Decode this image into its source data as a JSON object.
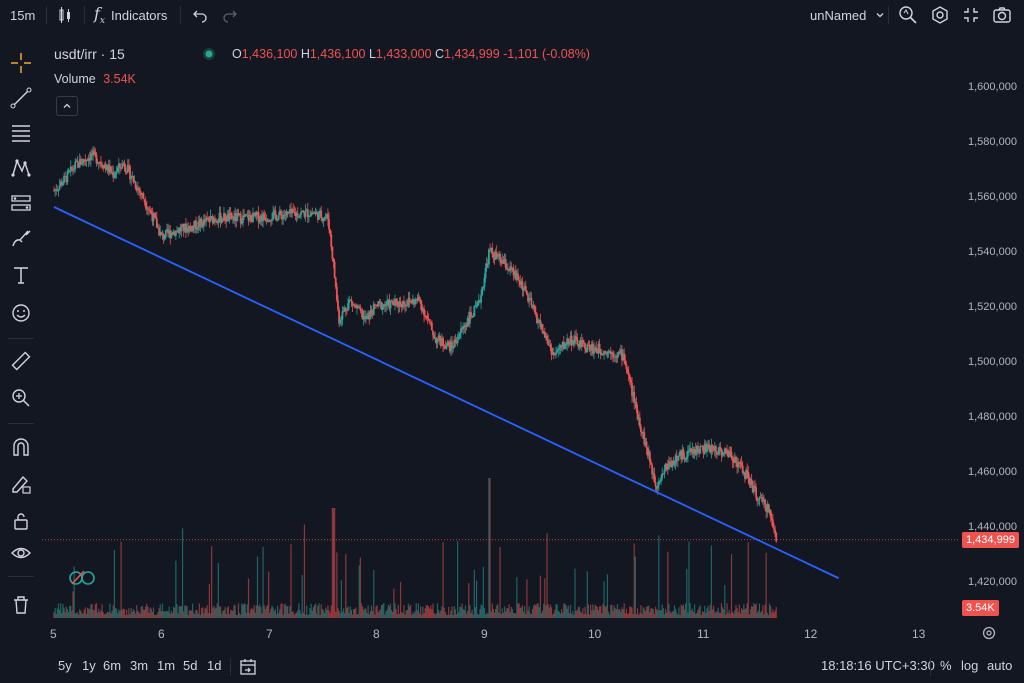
{
  "topbar": {
    "interval": "15m",
    "indicators_label": "Indicators",
    "layout_name": "unNamed"
  },
  "legend": {
    "symbol": "usdt/irr · 15",
    "open_label": "O",
    "open": "1,436,100",
    "high_label": "H",
    "high": "1,436,100",
    "low_label": "L",
    "low": "1,433,000",
    "close_label": "C",
    "close": "1,434,999",
    "change": "-1,101 (-0.08%)",
    "volume_label": "Volume",
    "volume_value": "3.54K"
  },
  "price_axis": {
    "ticks": [
      "1,600,000",
      "1,580,000",
      "1,560,000",
      "1,540,000",
      "1,520,000",
      "1,500,000",
      "1,480,000",
      "1,460,000",
      "1,440,000",
      "1,420,000"
    ],
    "current_price": "1,434,999",
    "current_volume": "3.54K"
  },
  "time_axis": {
    "ticks": [
      "5",
      "6",
      "7",
      "8",
      "9",
      "10",
      "11",
      "12",
      "13"
    ]
  },
  "bottombar": {
    "ranges": [
      "5y",
      "1y",
      "6m",
      "3m",
      "1m",
      "5d",
      "1d"
    ],
    "clock": "18:18:16 UTC+3:30",
    "percent": "%",
    "log": "log",
    "auto": "auto"
  },
  "colors": {
    "up": "#26a69a",
    "down": "#ef5350",
    "trendline": "#2962ff",
    "background": "#131722"
  },
  "chart_data": {
    "type": "candlestick",
    "series_name": "usdt/irr",
    "interval": "15",
    "x_ticks": [
      "5",
      "6",
      "7",
      "8",
      "9",
      "10",
      "11",
      "12",
      "13"
    ],
    "ylim": [
      1410000,
      1610000
    ],
    "close_path": [
      {
        "x": 5.0,
        "y": 1562000
      },
      {
        "x": 5.1,
        "y": 1566000
      },
      {
        "x": 5.2,
        "y": 1571000
      },
      {
        "x": 5.35,
        "y": 1575000
      },
      {
        "x": 5.45,
        "y": 1572000
      },
      {
        "x": 5.55,
        "y": 1568000
      },
      {
        "x": 5.65,
        "y": 1572000
      },
      {
        "x": 5.75,
        "y": 1565000
      },
      {
        "x": 5.85,
        "y": 1558000
      },
      {
        "x": 5.95,
        "y": 1550000
      },
      {
        "x": 6.0,
        "y": 1545000
      },
      {
        "x": 6.1,
        "y": 1547000
      },
      {
        "x": 6.3,
        "y": 1549000
      },
      {
        "x": 6.5,
        "y": 1552000
      },
      {
        "x": 6.8,
        "y": 1552000
      },
      {
        "x": 7.1,
        "y": 1553000
      },
      {
        "x": 7.4,
        "y": 1554000
      },
      {
        "x": 7.55,
        "y": 1552000
      },
      {
        "x": 7.6,
        "y": 1535000
      },
      {
        "x": 7.65,
        "y": 1515000
      },
      {
        "x": 7.75,
        "y": 1522000
      },
      {
        "x": 7.9,
        "y": 1515000
      },
      {
        "x": 8.0,
        "y": 1520000
      },
      {
        "x": 8.2,
        "y": 1521000
      },
      {
        "x": 8.4,
        "y": 1522000
      },
      {
        "x": 8.55,
        "y": 1508000
      },
      {
        "x": 8.7,
        "y": 1505000
      },
      {
        "x": 8.85,
        "y": 1515000
      },
      {
        "x": 8.95,
        "y": 1520000
      },
      {
        "x": 9.05,
        "y": 1540000
      },
      {
        "x": 9.2,
        "y": 1535000
      },
      {
        "x": 9.35,
        "y": 1528000
      },
      {
        "x": 9.5,
        "y": 1515000
      },
      {
        "x": 9.65,
        "y": 1502000
      },
      {
        "x": 9.8,
        "y": 1508000
      },
      {
        "x": 9.95,
        "y": 1505000
      },
      {
        "x": 10.1,
        "y": 1504000
      },
      {
        "x": 10.3,
        "y": 1502000
      },
      {
        "x": 10.4,
        "y": 1485000
      },
      {
        "x": 10.5,
        "y": 1470000
      },
      {
        "x": 10.6,
        "y": 1455000
      },
      {
        "x": 10.7,
        "y": 1462000
      },
      {
        "x": 10.85,
        "y": 1466000
      },
      {
        "x": 11.0,
        "y": 1468000
      },
      {
        "x": 11.15,
        "y": 1468000
      },
      {
        "x": 11.3,
        "y": 1466000
      },
      {
        "x": 11.45,
        "y": 1458000
      },
      {
        "x": 11.55,
        "y": 1450000
      },
      {
        "x": 11.65,
        "y": 1446000
      },
      {
        "x": 11.72,
        "y": 1435000
      }
    ],
    "trendline": {
      "x1": 5.0,
      "y1": 1556000,
      "x2": 12.3,
      "y2": 1421000
    },
    "current_price": 1434999
  }
}
